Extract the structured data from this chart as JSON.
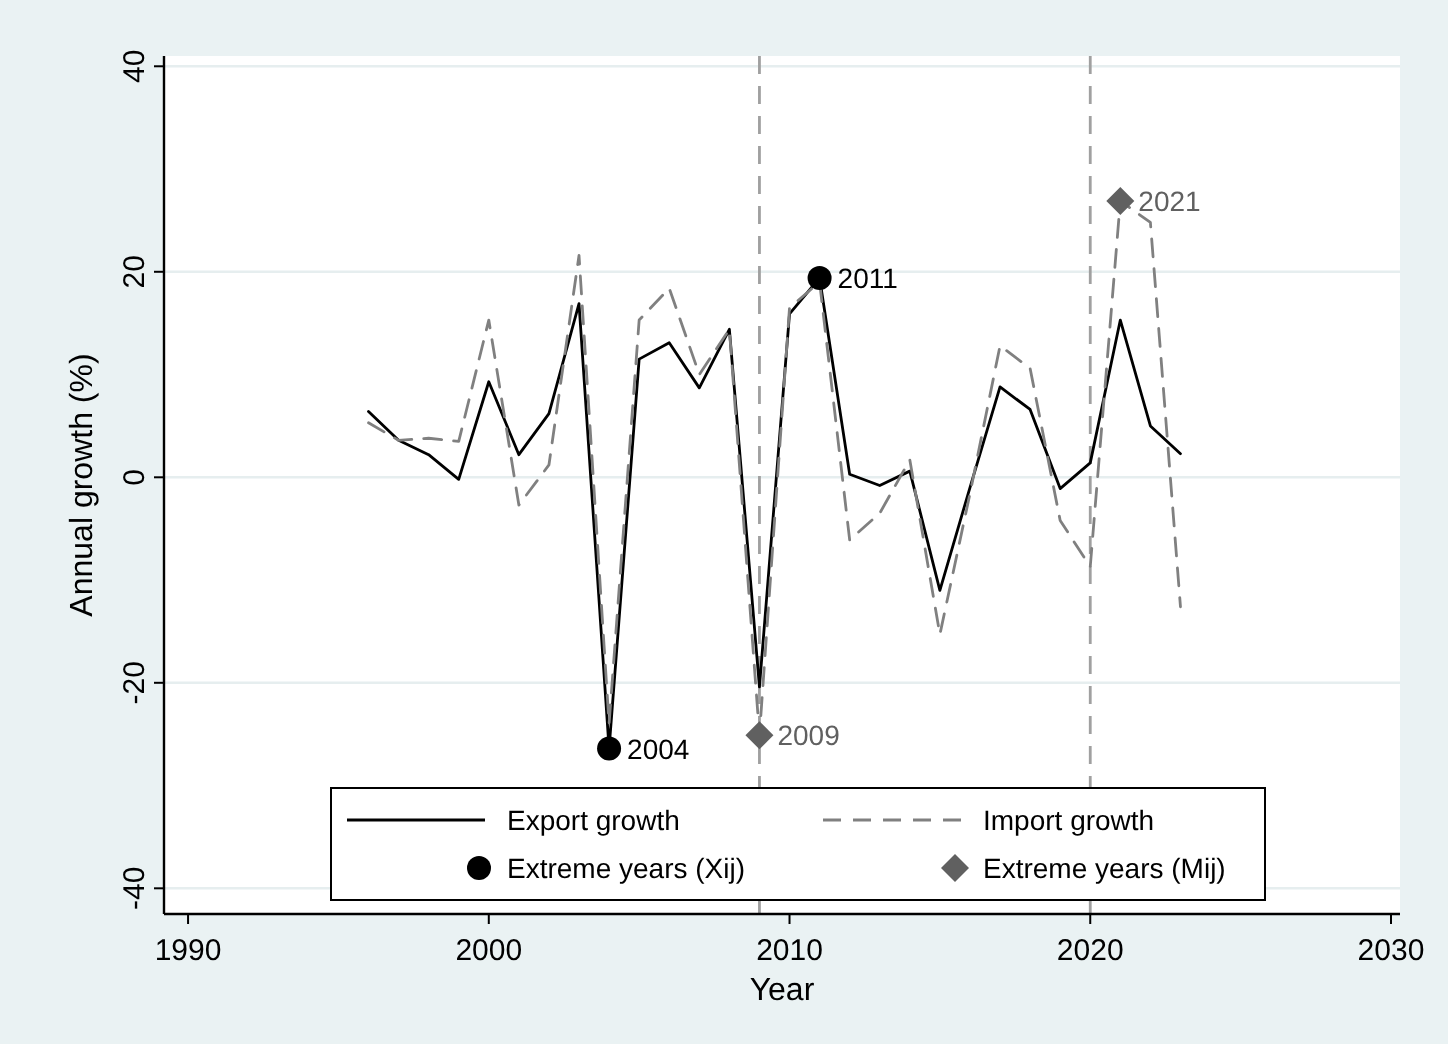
{
  "chart_data": {
    "type": "line",
    "xlabel": "Year",
    "ylabel": "Annual growth (%)",
    "xlim": [
      1989.2,
      2030.3
    ],
    "xticks": [
      1990,
      2000,
      2010,
      2020,
      2030
    ],
    "ylim": [
      -42.5,
      41
    ],
    "yticks": [
      -40,
      -20,
      0,
      20,
      40
    ],
    "grid": "y",
    "legend": "bottom",
    "series": [
      {
        "name": "Export growth",
        "color": "#000000",
        "line_style": "solid",
        "marker": "none",
        "x": [
          1996,
          1997,
          1998,
          1999,
          2000,
          2001,
          2002,
          2003,
          2004,
          2005,
          2006,
          2007,
          2008,
          2009,
          2010,
          2011,
          2012,
          2013,
          2014,
          2015,
          2016,
          2017,
          2018,
          2019,
          2020,
          2021,
          2022,
          2023
        ],
        "values": [
          6.4,
          3.6,
          2.2,
          -0.2,
          9.3,
          2.2,
          6.2,
          16.9,
          -26.4,
          11.5,
          13.1,
          8.7,
          14.4,
          -20.4,
          15.9,
          19.4,
          0.3,
          -0.8,
          0.6,
          -11,
          -1,
          8.8,
          6.6,
          -1.1,
          1.4,
          15.3,
          5,
          2.3
        ]
      },
      {
        "name": "Import growth",
        "color": "#808080",
        "line_style": "dashed",
        "marker": "none",
        "x": [
          1996,
          1997,
          1998,
          1999,
          2000,
          2001,
          2002,
          2003,
          2004,
          2005,
          2006,
          2007,
          2008,
          2009,
          2010,
          2011,
          2012,
          2013,
          2014,
          2015,
          2016,
          2017,
          2018,
          2019,
          2020,
          2021,
          2022,
          2023
        ],
        "values": [
          5.3,
          3.6,
          3.8,
          3.5,
          15.3,
          -2.7,
          1.2,
          21.6,
          -24,
          15.3,
          18.4,
          10,
          14.4,
          -25.1,
          16.5,
          19,
          -6.1,
          -3.5,
          1.7,
          -15.3,
          -1.6,
          12.8,
          10.6,
          -4.2,
          -8.7,
          26.9,
          24.8,
          -12.6
        ]
      },
      {
        "name": "Extreme years (Xij)",
        "type": "scatter",
        "color": "#000000",
        "marker": "circle",
        "x": [
          2004,
          2011
        ],
        "values": [
          -26.4,
          19.4
        ]
      },
      {
        "name": "Extreme years (Mij)",
        "type": "scatter",
        "color": "#606060",
        "marker": "diamond",
        "x": [
          2009,
          2021
        ],
        "values": [
          -25.1,
          26.9
        ]
      }
    ],
    "annotations": [
      {
        "text": "2004",
        "x": 2004,
        "y": -26.4
      },
      {
        "text": "2011",
        "x": 2011,
        "y": 19.4
      },
      {
        "text": "2009",
        "x": 2009,
        "y": -25.1
      },
      {
        "text": "2021",
        "x": 2021,
        "y": 26.9
      }
    ],
    "ref_lines": [
      {
        "axis": "x",
        "value": 2009,
        "color": "#a0a0a0",
        "line_style": "dashed"
      },
      {
        "axis": "x",
        "value": 2020,
        "color": "#a0a0a0",
        "line_style": "dashed"
      }
    ]
  }
}
